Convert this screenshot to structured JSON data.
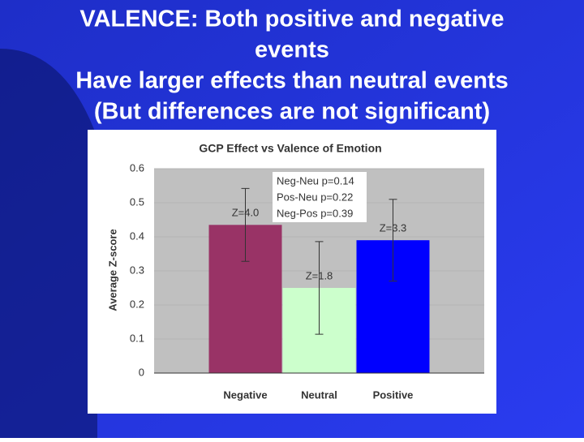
{
  "slide": {
    "title_lines": [
      "VALENCE: Both positive and negative",
      "events",
      "Have larger effects than neutral events",
      "(But differences are not significant)"
    ]
  },
  "chart_data": {
    "type": "bar",
    "title": "GCP Effect vs Valence of Emotion",
    "y_label": "Average Z-score",
    "categories": [
      "Negative",
      "Neutral",
      "Positive"
    ],
    "values": [
      0.435,
      0.25,
      0.39
    ],
    "errors": [
      0.107,
      0.136,
      0.12
    ],
    "colors": [
      "#993366",
      "#ccffcc",
      "#0000ff"
    ],
    "annotations": [
      "Z=4.0",
      "Z=1.8",
      "Z=3.3"
    ],
    "p_values": [
      "Neg-Neu p=0.14",
      "Pos-Neu p=0.22",
      "Neg-Pos p=0.39"
    ],
    "ylim": [
      0,
      0.6
    ],
    "yticks": [
      0,
      0.1,
      0.2,
      0.3,
      0.4,
      0.5,
      0.6
    ],
    "grid": true
  }
}
